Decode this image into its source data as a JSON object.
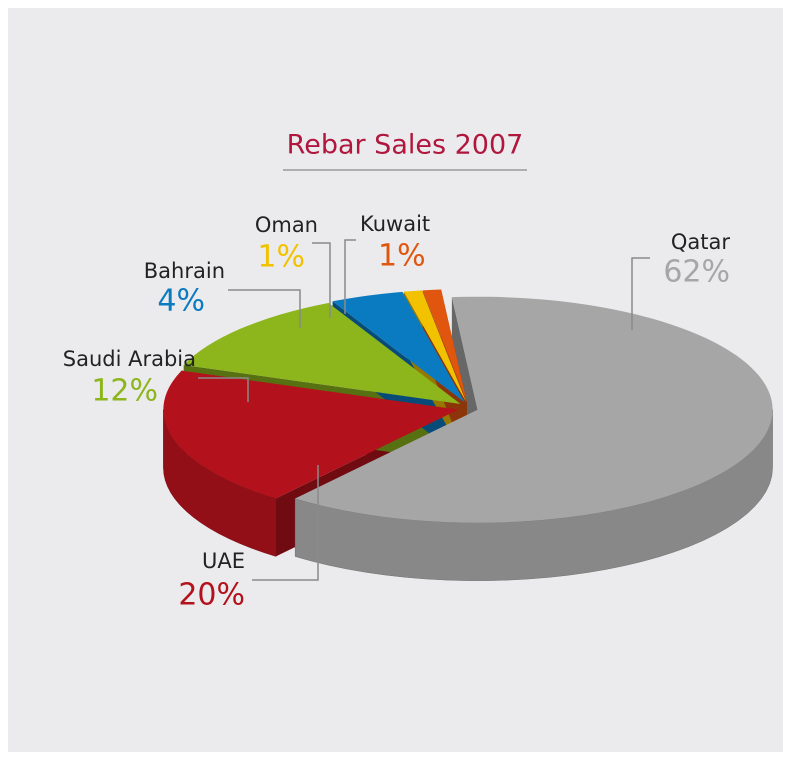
{
  "chart_data": {
    "type": "pie",
    "title": "Rebar Sales 2007",
    "categories": [
      "Qatar",
      "UAE",
      "Saudi Arabia",
      "Bahrain",
      "Oman",
      "Kuwait"
    ],
    "values": [
      62,
      20,
      12,
      4,
      1,
      1
    ],
    "value_labels": [
      "62%",
      "20%",
      "12%",
      "4%",
      "1%",
      "1%"
    ],
    "colors": [
      "#a6a6a6",
      "#b3121c",
      "#8db51c",
      "#0b7bc1",
      "#f2c200",
      "#e0560f"
    ]
  }
}
